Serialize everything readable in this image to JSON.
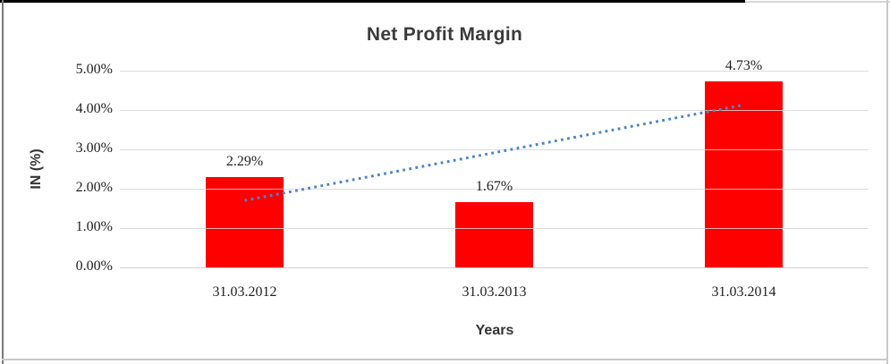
{
  "chart_data": {
    "type": "bar",
    "title": "Net Profit Margin",
    "xlabel": "Years",
    "ylabel": "IN (%)",
    "categories": [
      "31.03.2012",
      "31.03.2013",
      "31.03.2014"
    ],
    "values": [
      2.29,
      1.67,
      4.73
    ],
    "value_labels": [
      "2.29%",
      "1.67%",
      "4.73%"
    ],
    "ylim": [
      0,
      5
    ],
    "ytick_step": 1,
    "ytick_labels": [
      "0.00%",
      "1.00%",
      "2.00%",
      "3.00%",
      "4.00%",
      "5.00%"
    ],
    "grid": true,
    "legend": "none",
    "bar_color": "#ff0000",
    "trendline": {
      "type": "linear",
      "style": "dotted",
      "color": "#4a86c8",
      "start_value": 1.7,
      "end_value": 4.13
    }
  },
  "frame": {
    "border_top_dark": "#000000",
    "border_top_light": "#d7d7d7",
    "border_left": "#7a7a7a",
    "border_right": "#c9c9c9",
    "border_bottom": "#c9c9c9"
  }
}
